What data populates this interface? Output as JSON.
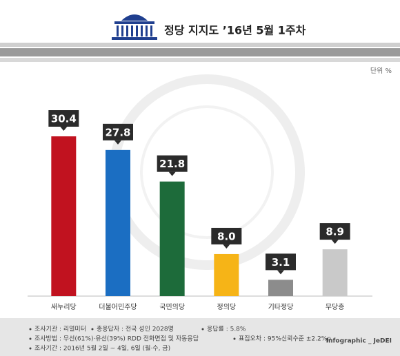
{
  "chart_data": {
    "type": "bar",
    "title": "정당 지지도 ’16년 5월 1주차",
    "unit": "단위 %",
    "categories": [
      "새누리당",
      "더불어민주당",
      "국민의당",
      "정의당",
      "기타정당",
      "무당층"
    ],
    "values": [
      30.4,
      27.8,
      21.8,
      8.0,
      3.1,
      8.9
    ],
    "value_labels": [
      "30.4",
      "27.8",
      "21.8",
      "8.0",
      "3.1",
      "8.9"
    ],
    "colors": [
      "#c1121f",
      "#1b6ec2",
      "#1d6b3a",
      "#f6b417",
      "#8c8c8c",
      "#c9c9c9"
    ],
    "notes": [
      "조사기관 : 리얼미터",
      "총응답자 : 전국 성인 2028명",
      "응답률 : 5.8%",
      "조사방법 : 무선(61%)·유선(39%) RDD 전화면접 및 자동응답",
      "표집오차 : 95%신뢰수준 ±2.2%p",
      "조사기간 : 2016년 5월 2일 ~ 4일, 6일 (월·수, 금)"
    ],
    "credit": "Infographic _ JeDEI"
  }
}
